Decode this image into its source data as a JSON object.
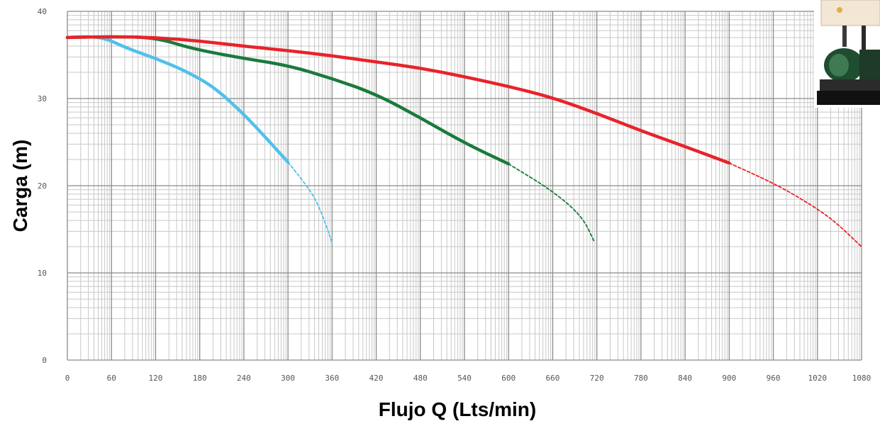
{
  "chart_data": {
    "type": "line",
    "title": "",
    "xlabel": "Flujo Q (Lts/min)",
    "ylabel": "Carga  (m)",
    "xlim": [
      0,
      1080
    ],
    "ylim": [
      0,
      40
    ],
    "x_major_ticks": [
      0,
      60,
      120,
      180,
      240,
      300,
      360,
      420,
      480,
      540,
      600,
      660,
      720,
      780,
      840,
      900,
      960,
      1020,
      1080
    ],
    "x_tick_labels": [
      "0",
      "60",
      "120",
      "180",
      "240",
      "300",
      "360",
      "420",
      "480",
      "540",
      "600",
      "660",
      "720",
      "780",
      "840",
      "900",
      "960",
      "1020",
      "1080"
    ],
    "y_major_ticks": [
      0,
      10,
      20,
      30,
      40
    ],
    "y_tick_labels": [
      "0",
      "10",
      "20",
      "30",
      "40"
    ],
    "grid": true,
    "legend": "none",
    "series": [
      {
        "color": "#4fc1ea",
        "points": [
          [
            0,
            37
          ],
          [
            20,
            37.1
          ],
          [
            50,
            37
          ],
          [
            80,
            35.8
          ],
          [
            120,
            34.6
          ],
          [
            160,
            33.2
          ],
          [
            200,
            31.3
          ],
          [
            240,
            28.2
          ],
          [
            270,
            25.5
          ],
          [
            300,
            22.7
          ],
          [
            320,
            20.6
          ],
          [
            340,
            18.2
          ],
          [
            360,
            13.5
          ]
        ],
        "solid_until": 300
      },
      {
        "color": "#1a7a3c",
        "points": [
          [
            0,
            37
          ],
          [
            60,
            37.1
          ],
          [
            120,
            37
          ],
          [
            170,
            35.7
          ],
          [
            240,
            34.6
          ],
          [
            300,
            33.8
          ],
          [
            360,
            32.3
          ],
          [
            420,
            30.5
          ],
          [
            480,
            27.8
          ],
          [
            540,
            24.9
          ],
          [
            600,
            22.5
          ],
          [
            660,
            19.4
          ],
          [
            700,
            16.5
          ],
          [
            717,
            13.5
          ]
        ],
        "solid_until": 600
      },
      {
        "color": "#e8232a",
        "points": [
          [
            0,
            37
          ],
          [
            60,
            37.1
          ],
          [
            120,
            37
          ],
          [
            180,
            36.6
          ],
          [
            240,
            36
          ],
          [
            300,
            35.5
          ],
          [
            360,
            34.9
          ],
          [
            420,
            34.2
          ],
          [
            480,
            33.5
          ],
          [
            540,
            32.5
          ],
          [
            600,
            31.4
          ],
          [
            660,
            30.1
          ],
          [
            720,
            28.3
          ],
          [
            780,
            26.3
          ],
          [
            840,
            24.5
          ],
          [
            900,
            22.6
          ],
          [
            960,
            20.3
          ],
          [
            1000,
            18.4
          ],
          [
            1040,
            16.2
          ],
          [
            1080,
            13
          ]
        ],
        "solid_until": 900
      }
    ]
  }
}
